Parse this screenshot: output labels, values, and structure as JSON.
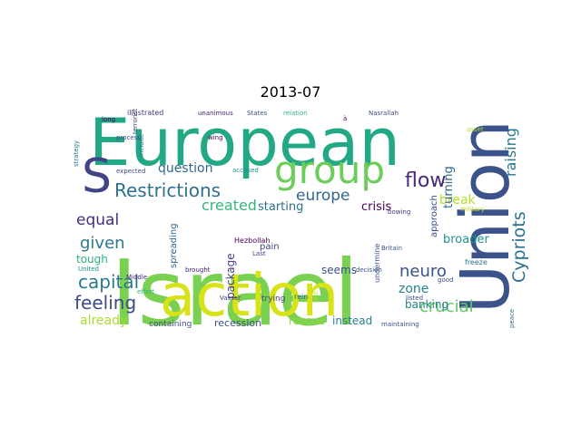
{
  "title": "2013-07",
  "words": [
    {
      "text": "Israel",
      "color": "#7ad151",
      "vertical": false
    },
    {
      "text": "European",
      "color": "#22a884",
      "vertical": false
    },
    {
      "text": "Union",
      "color": "#3b528b",
      "vertical": true
    },
    {
      "text": "action",
      "color": "#d8e219",
      "vertical": false
    },
    {
      "text": "group",
      "color": "#6ccd5a",
      "vertical": false
    },
    {
      "text": "S",
      "color": "#414487",
      "vertical": false
    },
    {
      "text": "Restrictions",
      "color": "#2c728e",
      "vertical": false
    },
    {
      "text": "europe",
      "color": "#31688e",
      "vertical": false
    },
    {
      "text": "flow",
      "color": "#482878",
      "vertical": false
    },
    {
      "text": "Cypriots",
      "color": "#2c728e",
      "vertical": true
    },
    {
      "text": "raising",
      "color": "#2a788e",
      "vertical": true
    },
    {
      "text": "capital",
      "color": "#2a788e",
      "vertical": false
    },
    {
      "text": "feeling",
      "color": "#3e4a89",
      "vertical": false
    },
    {
      "text": "given",
      "color": "#2a788e",
      "vertical": false
    },
    {
      "text": "equal",
      "color": "#472d7b",
      "vertical": false
    },
    {
      "text": "question",
      "color": "#31688e",
      "vertical": false
    },
    {
      "text": "created",
      "color": "#35b779",
      "vertical": false
    },
    {
      "text": "crucial",
      "color": "#5ec962",
      "vertical": false
    },
    {
      "text": "neuro",
      "color": "#3b528b",
      "vertical": false
    },
    {
      "text": "zone",
      "color": "#26828e",
      "vertical": false
    },
    {
      "text": "already",
      "color": "#addc30",
      "vertical": false
    },
    {
      "text": "starting",
      "color": "#2c728e",
      "vertical": false
    },
    {
      "text": "crisis",
      "color": "#440154",
      "vertical": false
    },
    {
      "text": "break",
      "color": "#b5de2b",
      "vertical": false
    },
    {
      "text": "turning",
      "color": "#31688e",
      "vertical": true
    },
    {
      "text": "broader",
      "color": "#21918c",
      "vertical": false
    },
    {
      "text": "banking",
      "color": "#26828e",
      "vertical": false
    },
    {
      "text": "seems",
      "color": "#3b528b",
      "vertical": false
    },
    {
      "text": "rescue",
      "color": "#8fd744",
      "vertical": false
    },
    {
      "text": "instead",
      "color": "#26828e",
      "vertical": false
    },
    {
      "text": "recession",
      "color": "#3e4a89",
      "vertical": false
    },
    {
      "text": "package",
      "color": "#424086",
      "vertical": true
    },
    {
      "text": "pain",
      "color": "#404688",
      "vertical": false
    },
    {
      "text": "tough",
      "color": "#2db27d",
      "vertical": false
    },
    {
      "text": "spreading",
      "color": "#31688e",
      "vertical": true
    },
    {
      "text": "approach",
      "color": "#3e4a89",
      "vertical": true
    },
    {
      "text": "containing",
      "color": "#3e4a89",
      "vertical": false
    },
    {
      "text": "trying",
      "color": "#414487",
      "vertical": false
    },
    {
      "text": "Hezbollah",
      "color": "#440154",
      "vertical": false
    },
    {
      "text": "undermine",
      "color": "#3b528b",
      "vertical": true
    },
    {
      "text": "freeze",
      "color": "#2c728e",
      "vertical": false
    },
    {
      "text": "rein",
      "color": "#31688e",
      "vertical": false
    },
    {
      "text": "illustrated",
      "color": "#443983",
      "vertical": false
    },
    {
      "text": "unanimous",
      "color": "#482173",
      "vertical": false
    },
    {
      "text": "States",
      "color": "#3b528b",
      "vertical": false
    },
    {
      "text": "relation",
      "color": "#2fb47c",
      "vertical": false
    },
    {
      "text": "Nasrallah",
      "color": "#3e4a89",
      "vertical": false
    },
    {
      "text": "strategy",
      "color": "#2a788e",
      "vertical": true
    },
    {
      "text": "long",
      "color": "#440154",
      "vertical": false
    },
    {
      "text": "process",
      "color": "#3e4a89",
      "vertical": false
    },
    {
      "text": "expected",
      "color": "#3e4a89",
      "vertical": false
    },
    {
      "text": "include",
      "color": "#2c728e",
      "vertical": true
    },
    {
      "text": "terrorist",
      "color": "#443983",
      "vertical": true
    },
    {
      "text": "wing",
      "color": "#440154",
      "vertical": false
    },
    {
      "text": "accused",
      "color": "#21918c",
      "vertical": false
    },
    {
      "text": "asset",
      "color": "#addc30",
      "vertical": false
    },
    {
      "text": "military",
      "color": "#c2df23",
      "vertical": false
    },
    {
      "text": "bowing",
      "color": "#46327e",
      "vertical": false
    },
    {
      "text": "Britain",
      "color": "#3b528b",
      "vertical": false
    },
    {
      "text": "Middle",
      "color": "#482878",
      "vertical": false
    },
    {
      "text": "effort",
      "color": "#2fb47c",
      "vertical": false
    },
    {
      "text": "United",
      "color": "#21918c",
      "vertical": false
    },
    {
      "text": "brought",
      "color": "#482173",
      "vertical": false
    },
    {
      "text": "Last",
      "color": "#3e4a89",
      "vertical": false
    },
    {
      "text": "Vassar",
      "color": "#443983",
      "vertical": false
    },
    {
      "text": "decision",
      "color": "#3b528b",
      "vertical": false
    },
    {
      "text": "good",
      "color": "#3e4a89",
      "vertical": false
    },
    {
      "text": "listed",
      "color": "#3e4a89",
      "vertical": false
    },
    {
      "text": "maintaining",
      "color": "#3b528b",
      "vertical": false
    },
    {
      "text": "peace",
      "color": "#2c728e",
      "vertical": true
    },
    {
      "text": "last",
      "color": "#b5de2b",
      "vertical": true
    },
    {
      "text": "à",
      "color": "#440154",
      "vertical": false
    }
  ]
}
